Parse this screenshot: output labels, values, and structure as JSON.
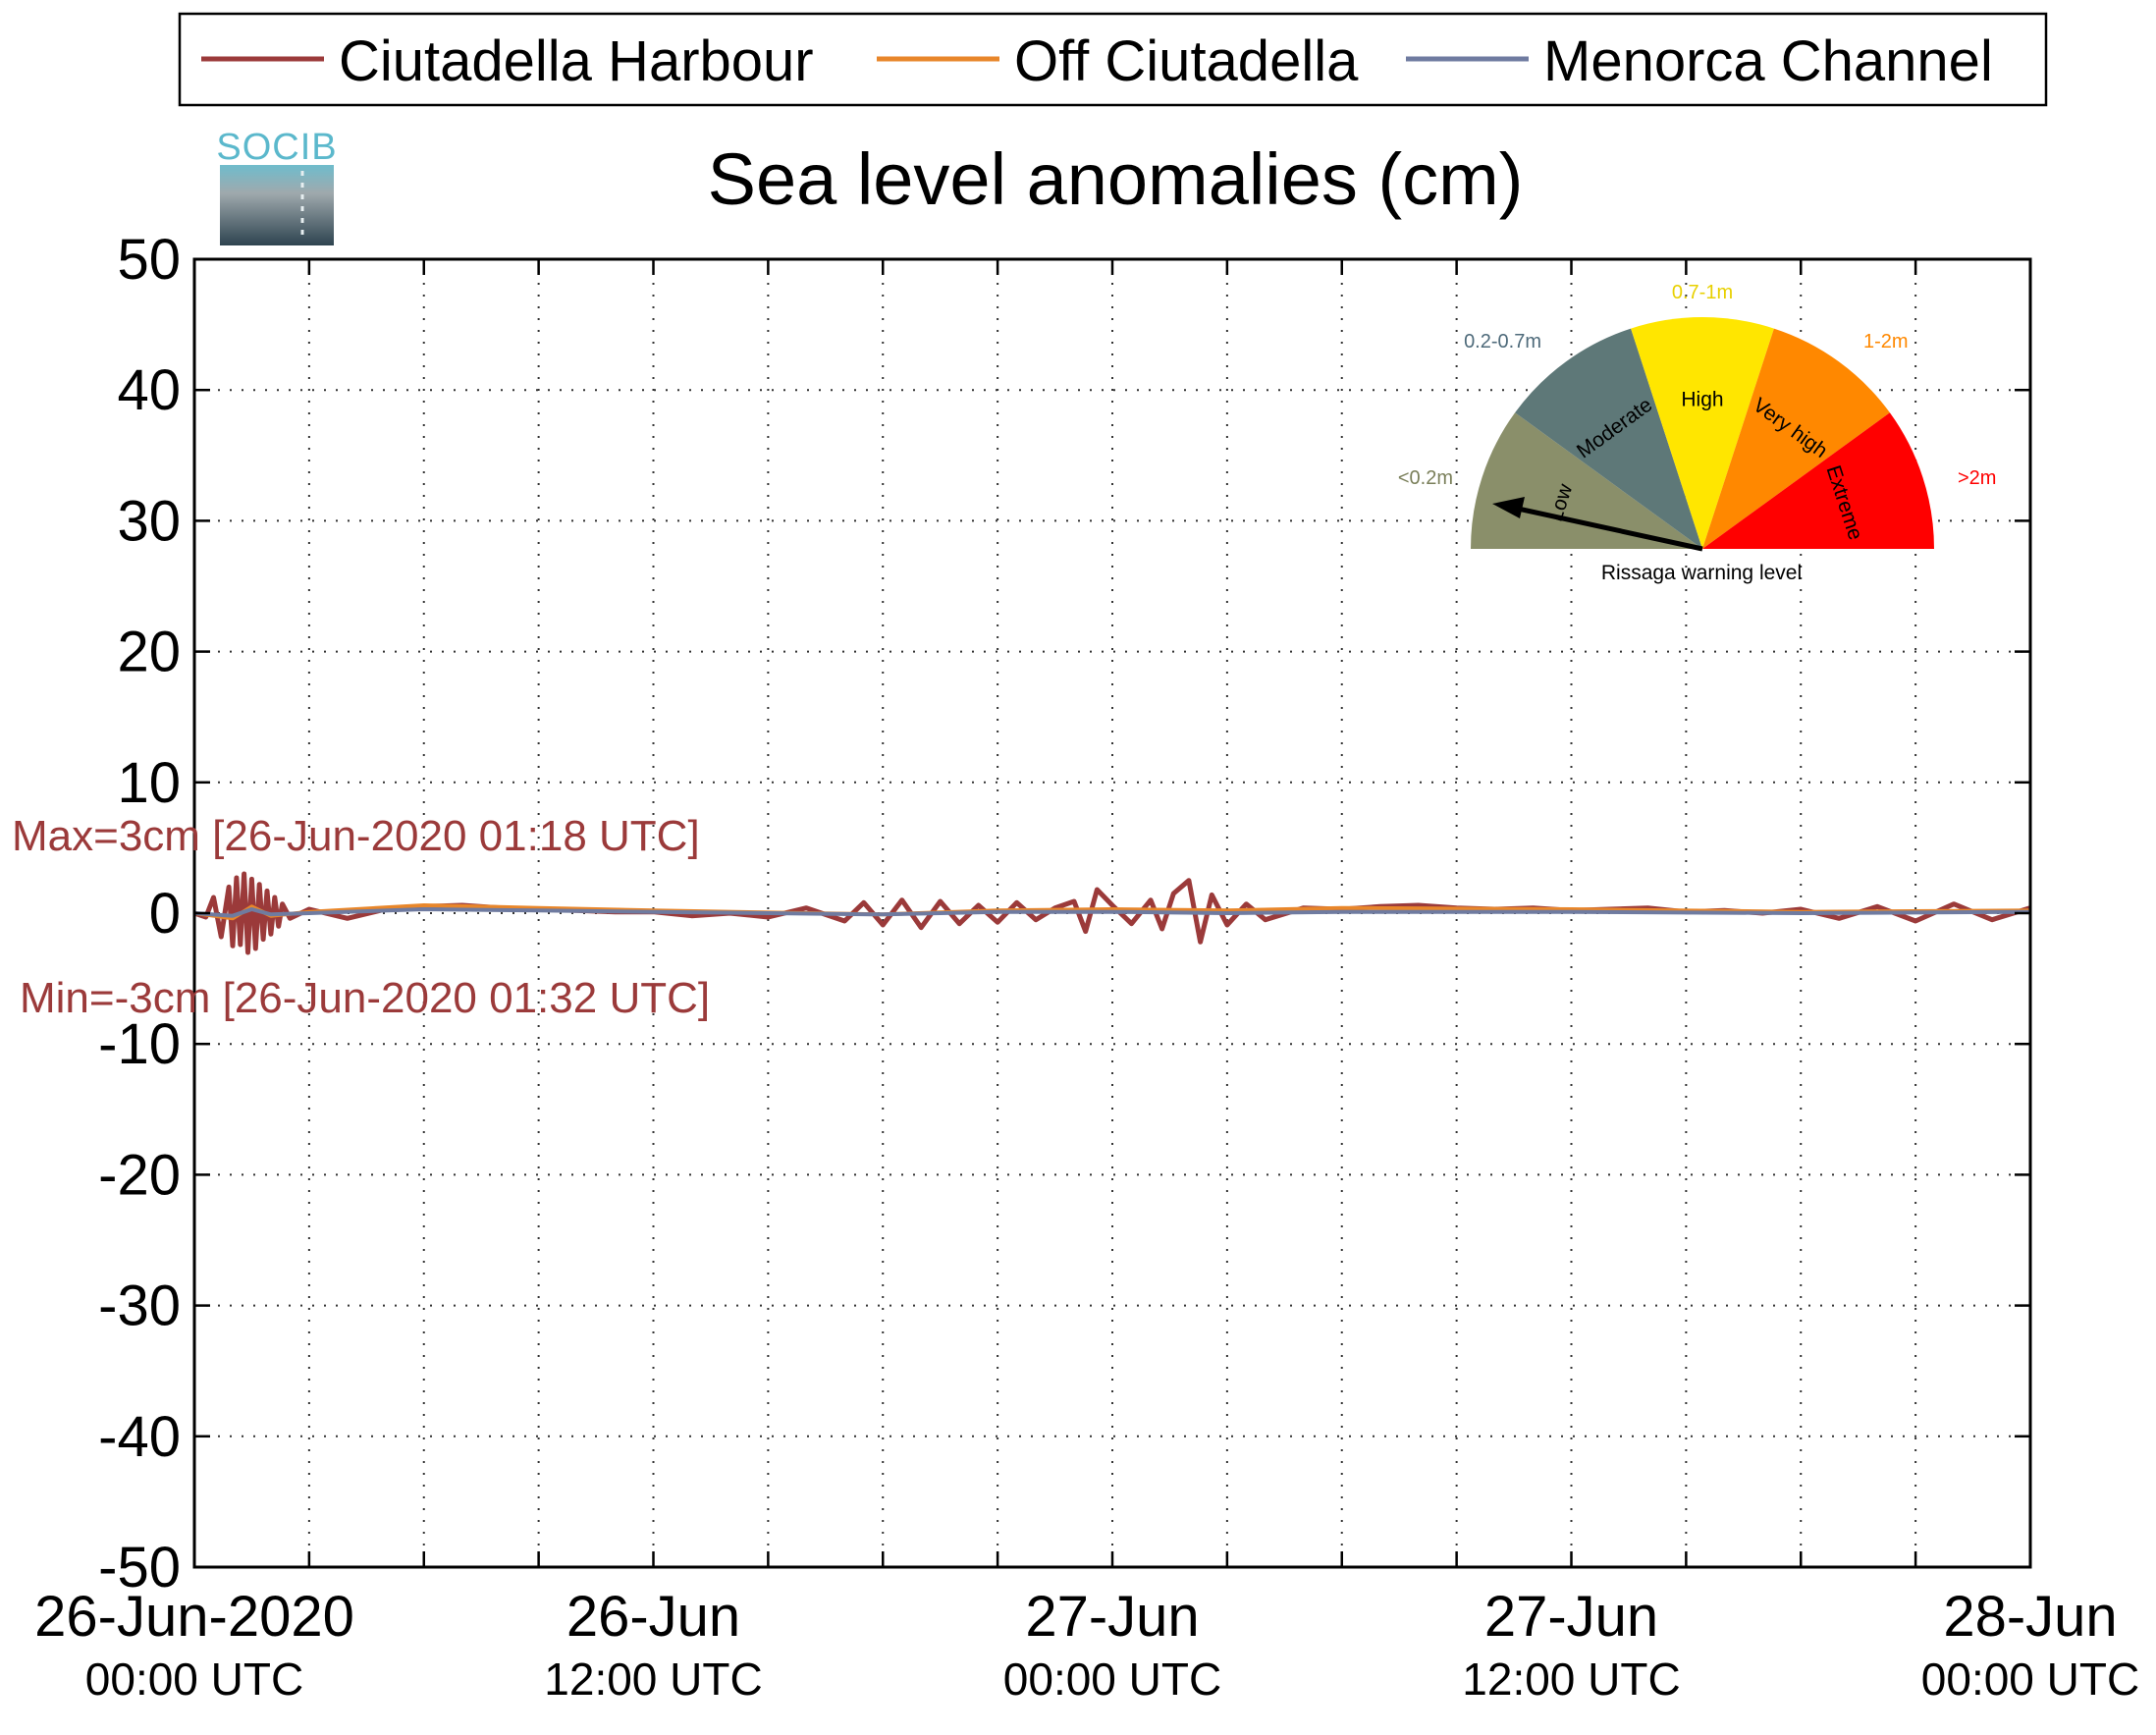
{
  "logo": {
    "text": "SOCIB"
  },
  "chart_data": {
    "type": "line",
    "title": "Sea level anomalies (cm)",
    "xlabel": "",
    "ylabel": "",
    "ylim": [
      -50,
      50
    ],
    "yticks": [
      50,
      40,
      30,
      20,
      10,
      0,
      -10,
      -20,
      -30,
      -40,
      -50
    ],
    "x_unit": "hours since 26-Jun-2020 00:00 UTC",
    "xlim": [
      0,
      48
    ],
    "xticks": [
      0,
      3,
      6,
      9,
      12,
      15,
      18,
      21,
      24,
      27,
      30,
      33,
      36,
      39,
      42,
      45,
      48
    ],
    "x_tick_labels": [
      {
        "hour": 0,
        "line1": "26-Jun-2020",
        "line2": "00:00 UTC"
      },
      {
        "hour": 12,
        "line1": "26-Jun",
        "line2": "12:00 UTC"
      },
      {
        "hour": 24,
        "line1": "27-Jun",
        "line2": "00:00 UTC"
      },
      {
        "hour": 36,
        "line1": "27-Jun",
        "line2": "12:00 UTC"
      },
      {
        "hour": 48,
        "line1": "28-Jun",
        "line2": "00:00 UTC"
      }
    ],
    "grid": true,
    "legend_position": "top",
    "series": [
      {
        "name": "Ciutadella Harbour",
        "color": "#9b3a3a",
        "x": [
          0,
          0.3,
          0.5,
          0.7,
          0.9,
          1.0,
          1.1,
          1.2,
          1.3,
          1.4,
          1.5,
          1.6,
          1.7,
          1.8,
          1.9,
          2.0,
          2.1,
          2.2,
          2.3,
          2.5,
          3,
          4,
          5,
          6,
          7,
          8,
          9,
          10,
          11,
          12,
          13,
          14,
          15,
          16,
          17,
          17.5,
          18,
          18.5,
          19,
          19.5,
          20,
          20.5,
          21,
          21.5,
          22,
          22.5,
          23,
          23.3,
          23.6,
          24,
          24.5,
          25,
          25.3,
          25.6,
          26,
          26.3,
          26.6,
          27,
          27.5,
          28,
          29,
          30,
          31,
          32,
          33,
          34,
          35,
          36,
          37,
          38,
          39,
          40,
          41,
          42,
          43,
          44,
          45,
          46,
          47,
          48
        ],
        "y": [
          0,
          -0.3,
          1.2,
          -1.8,
          2.0,
          -2.5,
          2.7,
          -2.4,
          3.0,
          -3.0,
          2.6,
          -2.7,
          2.2,
          -2.0,
          1.7,
          -1.6,
          1.2,
          -1.0,
          0.7,
          -0.4,
          0.3,
          -0.4,
          0.3,
          0.5,
          0.6,
          0.4,
          0.3,
          0.2,
          0.1,
          0.1,
          -0.2,
          0,
          -0.3,
          0.4,
          -0.6,
          0.8,
          -0.9,
          1.0,
          -1.1,
          0.9,
          -0.8,
          0.6,
          -0.7,
          0.8,
          -0.5,
          0.4,
          0.9,
          -1.4,
          1.8,
          0.6,
          -0.8,
          1.0,
          -1.2,
          1.5,
          2.5,
          -2.2,
          1.4,
          -0.9,
          0.7,
          -0.5,
          0.4,
          0.3,
          0.5,
          0.6,
          0.4,
          0.3,
          0.4,
          0.2,
          0.3,
          0.4,
          0.1,
          0.2,
          0.0,
          0.3,
          -0.4,
          0.5,
          -0.6,
          0.7,
          -0.5,
          0.4
        ]
      },
      {
        "name": "Off Ciutadella",
        "color": "#e8862a",
        "x": [
          0,
          1,
          1.5,
          2,
          3,
          6,
          9,
          12,
          18,
          21,
          24,
          27,
          30,
          36,
          42,
          48
        ],
        "y": [
          0,
          -0.4,
          0.5,
          -0.2,
          0.1,
          0.6,
          0.4,
          0.2,
          -0.1,
          0.2,
          0.3,
          0.2,
          0.4,
          0.3,
          0.1,
          0.2
        ]
      },
      {
        "name": "Menorca Channel",
        "color": "#6f7ba0",
        "x": [
          0,
          1,
          1.5,
          2,
          3,
          6,
          9,
          12,
          18,
          21,
          24,
          27,
          30,
          36,
          42,
          48
        ],
        "y": [
          0,
          -0.2,
          0.3,
          -0.1,
          0.0,
          0.3,
          0.2,
          0.1,
          -0.1,
          0.1,
          0.1,
          0.0,
          0.1,
          0.1,
          0.0,
          0.1
        ]
      }
    ],
    "annotations": {
      "max": "Max=3cm [26-Jun-2020 01:18 UTC]",
      "min": "Min=-3cm [26-Jun-2020 01:32 UTC]",
      "color": "#9b3a3a"
    }
  },
  "gauge": {
    "caption": "Rissaga warning level",
    "needle_level": "Low",
    "segments": [
      {
        "name": "Low",
        "range": "<0.2m",
        "color": "#8a8f6a",
        "range_color": "#7a7f5a"
      },
      {
        "name": "Moderate",
        "range": "0.2-0.7m",
        "color": "#5e7878",
        "range_color": "#4e6a7a"
      },
      {
        "name": "High",
        "range": "0.7-1m",
        "color": "#ffe600",
        "range_color": "#e8d000"
      },
      {
        "name": "Very high",
        "range": "1-2m",
        "color": "#ff8800",
        "range_color": "#ff8800"
      },
      {
        "name": "Extreme",
        "range": ">2m",
        "color": "#ff0000",
        "range_color": "#ff0000"
      }
    ]
  }
}
